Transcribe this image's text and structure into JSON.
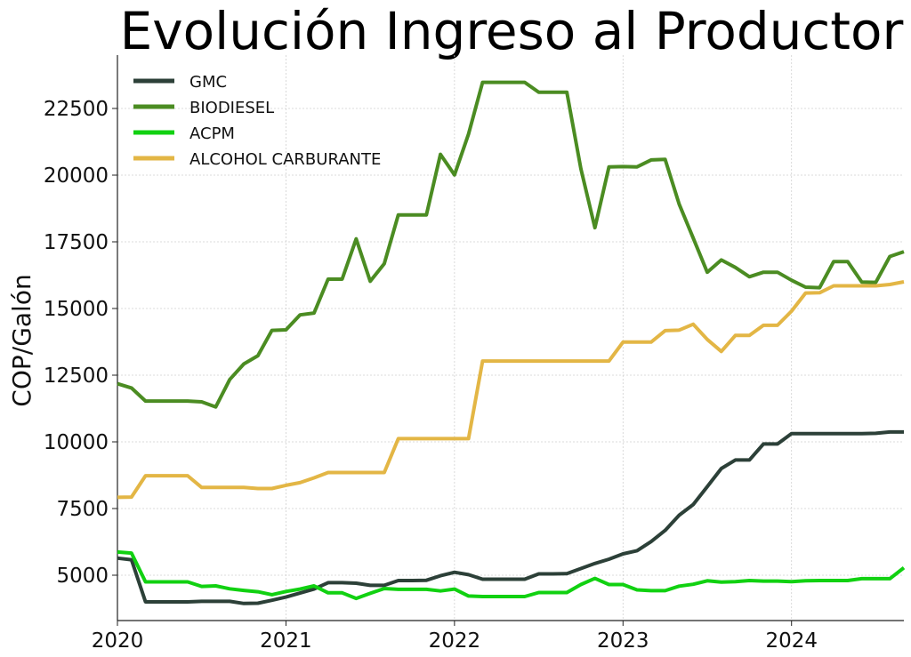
{
  "chart_data": {
    "type": "line",
    "title": "Evolución Ingreso al Productor",
    "xlabel": "",
    "ylabel": "COP/Galón",
    "x_ticks": [
      "2020",
      "2021",
      "2022",
      "2023",
      "2024"
    ],
    "y_ticks": [
      "5000",
      "7500",
      "10000",
      "12500",
      "15000",
      "17500",
      "20000",
      "22500"
    ],
    "xlim": [
      "2020-01",
      "2024-09"
    ],
    "ylim": [
      3300,
      24500
    ],
    "grid": true,
    "legend_position": "top-left",
    "x": [
      "2020-01",
      "2020-02",
      "2020-03",
      "2020-04",
      "2020-05",
      "2020-06",
      "2020-07",
      "2020-08",
      "2020-09",
      "2020-10",
      "2020-11",
      "2020-12",
      "2021-01",
      "2021-02",
      "2021-03",
      "2021-04",
      "2021-05",
      "2021-06",
      "2021-07",
      "2021-08",
      "2021-09",
      "2021-10",
      "2021-11",
      "2021-12",
      "2022-01",
      "2022-02",
      "2022-03",
      "2022-04",
      "2022-05",
      "2022-06",
      "2022-07",
      "2022-08",
      "2022-09",
      "2022-10",
      "2022-11",
      "2022-12",
      "2023-01",
      "2023-02",
      "2023-03",
      "2023-04",
      "2023-05",
      "2023-06",
      "2023-07",
      "2023-08",
      "2023-09",
      "2023-10",
      "2023-11",
      "2023-12",
      "2024-01",
      "2024-02",
      "2024-03",
      "2024-04",
      "2024-05",
      "2024-06",
      "2024-07",
      "2024-08",
      "2024-09"
    ],
    "series": [
      {
        "name": "GMC",
        "color": "#2c4038",
        "values": [
          5640,
          5580,
          4000,
          4000,
          4000,
          4000,
          4020,
          4020,
          4020,
          3940,
          3950,
          4060,
          4180,
          4330,
          4480,
          4720,
          4720,
          4700,
          4620,
          4620,
          4800,
          4800,
          4810,
          4980,
          5110,
          5020,
          4850,
          4850,
          4850,
          4850,
          5050,
          5050,
          5060,
          5250,
          5440,
          5600,
          5800,
          5920,
          6260,
          6680,
          7250,
          7650,
          8320,
          9000,
          9320,
          9320,
          9920,
          9920,
          10310,
          10310,
          10310,
          10310,
          10310,
          10310,
          10320,
          10370,
          10370
        ]
      },
      {
        "name": "BIODIESEL",
        "color": "#4b8c22",
        "values": [
          12180,
          12020,
          11530,
          11530,
          11530,
          11530,
          11500,
          11310,
          12340,
          12920,
          13230,
          14180,
          14200,
          14760,
          14830,
          16100,
          16100,
          17610,
          16020,
          16680,
          18510,
          18510,
          18510,
          20780,
          20010,
          21540,
          23480,
          23480,
          23480,
          23480,
          23110,
          23110,
          23110,
          20240,
          18030,
          20310,
          20320,
          20310,
          20570,
          20590,
          18910,
          17640,
          16360,
          16820,
          16540,
          16190,
          16360,
          16360,
          16060,
          15800,
          15780,
          16760,
          16760,
          15990,
          15980,
          16950,
          17130
        ]
      },
      {
        "name": "ACPM",
        "color": "#11d111",
        "values": [
          5870,
          5830,
          4750,
          4750,
          4750,
          4750,
          4580,
          4600,
          4490,
          4430,
          4380,
          4270,
          4390,
          4480,
          4600,
          4340,
          4340,
          4130,
          4320,
          4500,
          4470,
          4470,
          4470,
          4410,
          4480,
          4220,
          4200,
          4200,
          4200,
          4200,
          4350,
          4350,
          4350,
          4650,
          4880,
          4650,
          4650,
          4450,
          4420,
          4420,
          4590,
          4660,
          4790,
          4740,
          4760,
          4800,
          4780,
          4780,
          4760,
          4790,
          4800,
          4800,
          4800,
          4870,
          4870,
          4870,
          5280
        ]
      },
      {
        "name": "ALCOHOL CARBURANTE",
        "color": "#e3b645",
        "values": [
          7920,
          7930,
          8730,
          8730,
          8730,
          8730,
          8290,
          8290,
          8290,
          8290,
          8250,
          8250,
          8370,
          8470,
          8650,
          8850,
          8850,
          8850,
          8850,
          8850,
          10120,
          10120,
          10120,
          10120,
          10120,
          10120,
          13030,
          13030,
          13030,
          13030,
          13030,
          13030,
          13030,
          13030,
          13030,
          13030,
          13740,
          13740,
          13740,
          14170,
          14190,
          14410,
          13840,
          13390,
          13990,
          13990,
          14370,
          14370,
          14900,
          15580,
          15590,
          15850,
          15850,
          15850,
          15850,
          15900,
          16000
        ]
      }
    ]
  }
}
